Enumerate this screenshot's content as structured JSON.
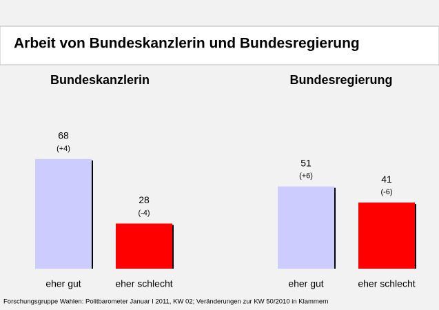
{
  "title": "Arbeit von Bundeskanzlerin und Bundesregierung",
  "source": "Forschungsgruppe Wahlen: Politbarometer Januar I 2011, KW 02; Veränderungen zur KW 50/2010 in Klammern",
  "chart_data": [
    {
      "type": "bar",
      "title": "Bundeskanzlerin",
      "categories": [
        "eher gut",
        "eher schlecht"
      ],
      "values": [
        68,
        28
      ],
      "annotations": [
        "(+4)",
        "(-4)"
      ],
      "colors": [
        "#ccccff",
        "#ff0000"
      ]
    },
    {
      "type": "bar",
      "title": "Bundesregierung",
      "categories": [
        "eher gut",
        "eher schlecht"
      ],
      "values": [
        51,
        41
      ],
      "annotations": [
        "(+6)",
        "(-6)"
      ],
      "colors": [
        "#ccccff",
        "#ff0000"
      ]
    }
  ]
}
